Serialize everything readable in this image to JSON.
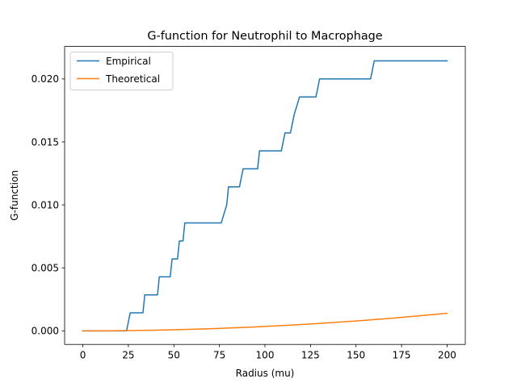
{
  "chart_data": {
    "type": "line",
    "title": "G-function for Neutrophil to Macrophage",
    "xlabel": "Radius (mu)",
    "ylabel": "G-function",
    "xlim": [
      -10,
      210
    ],
    "ylim": [
      -0.001075,
      0.022575
    ],
    "xticks": [
      0,
      25,
      50,
      75,
      100,
      125,
      150,
      175,
      200
    ],
    "xtick_labels": [
      "0",
      "25",
      "50",
      "75",
      "100",
      "125",
      "150",
      "175",
      "200"
    ],
    "yticks": [
      0.0,
      0.005,
      0.01,
      0.015,
      0.02
    ],
    "ytick_labels": [
      "0.000",
      "0.005",
      "0.010",
      "0.015",
      "0.020"
    ],
    "grid": false,
    "legend": {
      "position": "top-left"
    },
    "series": [
      {
        "name": "Empirical",
        "color": "#1f77b4",
        "step": true,
        "x": [
          0,
          24,
          26,
          33,
          34,
          41,
          42,
          48,
          49,
          52,
          53,
          55,
          56,
          76,
          79,
          80,
          86,
          88,
          93,
          96,
          97,
          109,
          111,
          114,
          116,
          119,
          125,
          128,
          130,
          158,
          160,
          200
        ],
        "y": [
          0.0,
          0.0,
          0.00143,
          0.00143,
          0.00286,
          0.00286,
          0.00429,
          0.00429,
          0.00571,
          0.00571,
          0.00714,
          0.00714,
          0.00857,
          0.00857,
          0.01,
          0.01143,
          0.01143,
          0.01286,
          0.01286,
          0.01286,
          0.01429,
          0.01429,
          0.01571,
          0.01571,
          0.01714,
          0.01857,
          0.01857,
          0.01857,
          0.02,
          0.02,
          0.02143,
          0.02143
        ]
      },
      {
        "name": "Theoretical",
        "color": "#ff7f0e",
        "step": false,
        "x": [
          0,
          10,
          20,
          30,
          40,
          50,
          60,
          70,
          80,
          90,
          100,
          110,
          120,
          130,
          140,
          150,
          160,
          170,
          180,
          190,
          200
        ],
        "y": [
          0.0,
          3.5e-06,
          1.4e-05,
          3.15e-05,
          5.6e-05,
          8.75e-05,
          0.000126,
          0.0001715,
          0.000224,
          0.0002835,
          0.00035,
          0.0004235,
          0.000504,
          0.0005915,
          0.000686,
          0.0007875,
          0.000896,
          0.0010115,
          0.001134,
          0.0012635,
          0.0014
        ]
      }
    ]
  }
}
